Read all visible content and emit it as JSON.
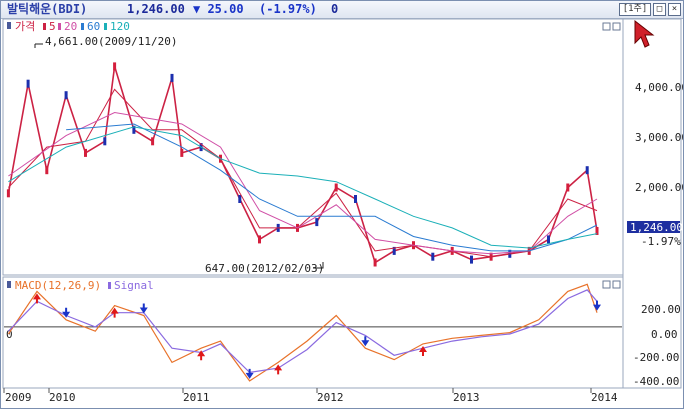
{
  "header": {
    "name": "발틱해운(BDI)",
    "price": "1,246.00",
    "change": "▼ 25.00",
    "change_pct": "(-1.97%)",
    "volume": "0",
    "period_button": "[1주]"
  },
  "price_panel": {
    "legend": [
      {
        "label": "가격",
        "color": "#cc2244"
      },
      {
        "label": "5",
        "color": "#cc2244"
      },
      {
        "label": "20",
        "color": "#d04fa6"
      },
      {
        "label": "60",
        "color": "#2a7bd1"
      },
      {
        "label": "120",
        "color": "#1bb0b8"
      }
    ],
    "high_annotation": "4,661.00(2009/11/20)",
    "low_annotation": "647.00(2012/02/03)",
    "last_price_label": "1,246.00",
    "last_pct_label": "-1.97%",
    "y_ticks": [
      "4,000.00",
      "3,000.00",
      "2,000.00"
    ]
  },
  "macd_panel": {
    "legend": [
      {
        "label": "MACD(12,26,9)",
        "color": "#e8722a"
      },
      {
        "label": "Signal",
        "color": "#8a6ae0"
      }
    ],
    "y_ticks": [
      "200.00",
      "0.00",
      "-200.00",
      "-400.00"
    ],
    "zero_label": "0"
  },
  "x_axis": {
    "labels": [
      "2009",
      "2010",
      "2011",
      "2012",
      "2013",
      "2014"
    ]
  },
  "chart_data": [
    {
      "type": "line",
      "series": [
        {
          "name": "가격",
          "x": [
            "2008-12",
            "2009-02",
            "2009-04",
            "2009-06",
            "2009-08",
            "2009-10",
            "2009-11",
            "2010-01",
            "2010-03",
            "2010-05",
            "2010-06",
            "2010-08",
            "2010-10",
            "2010-12",
            "2011-02",
            "2011-04",
            "2011-06",
            "2011-08",
            "2011-10",
            "2011-12",
            "2012-02",
            "2012-04",
            "2012-06",
            "2012-08",
            "2012-10",
            "2012-12",
            "2013-02",
            "2013-04",
            "2013-06",
            "2013-08",
            "2013-10",
            "2013-12",
            "2014-01"
          ],
          "values": [
            1900,
            3800,
            2300,
            3600,
            2600,
            2800,
            4100,
            3000,
            2800,
            3900,
            2600,
            2700,
            2500,
            1800,
            1100,
            1300,
            1300,
            1400,
            2000,
            1800,
            700,
            900,
            1000,
            800,
            900,
            750,
            800,
            850,
            900,
            1100,
            2000,
            2300,
            1246
          ]
        },
        {
          "name": "5",
          "x": [
            "2008-12",
            "2009-04",
            "2009-08",
            "2009-11",
            "2010-03",
            "2010-06",
            "2010-10",
            "2011-02",
            "2011-06",
            "2011-10",
            "2012-02",
            "2012-06",
            "2012-10",
            "2013-02",
            "2013-06",
            "2013-10",
            "2014-01"
          ],
          "values": [
            2000,
            2700,
            2800,
            3700,
            3000,
            3000,
            2500,
            1300,
            1300,
            1900,
            900,
            1000,
            900,
            800,
            900,
            1800,
            1600
          ]
        },
        {
          "name": "20",
          "x": [
            "2008-12",
            "2009-06",
            "2009-11",
            "2010-06",
            "2010-10",
            "2011-02",
            "2011-06",
            "2011-10",
            "2012-02",
            "2012-06",
            "2012-10",
            "2013-02",
            "2013-06",
            "2013-10",
            "2014-01"
          ],
          "values": [
            2200,
            2900,
            3300,
            3100,
            2700,
            1600,
            1300,
            1700,
            1100,
            1000,
            900,
            850,
            900,
            1500,
            1800
          ]
        },
        {
          "name": "60",
          "x": [
            "2009-06",
            "2010-01",
            "2010-06",
            "2010-10",
            "2011-02",
            "2011-06",
            "2011-10",
            "2012-02",
            "2012-06",
            "2012-10",
            "2013-02",
            "2013-06",
            "2013-10",
            "2014-01"
          ],
          "values": [
            3000,
            3100,
            2700,
            2300,
            1800,
            1500,
            1500,
            1500,
            1150,
            1000,
            900,
            900,
            1100,
            1350
          ]
        },
        {
          "name": "120",
          "x": [
            "2008-12",
            "2009-06",
            "2010-01",
            "2010-06",
            "2010-10",
            "2011-02",
            "2011-06",
            "2011-10",
            "2012-02",
            "2012-06",
            "2012-10",
            "2013-02",
            "2013-06",
            "2013-10",
            "2014-01"
          ],
          "values": [
            2100,
            2700,
            3050,
            2900,
            2500,
            2250,
            2200,
            2100,
            1800,
            1500,
            1300,
            1000,
            950,
            1100,
            1200
          ]
        }
      ],
      "ylim": [
        500,
        4800
      ],
      "annotations": [
        "4,661.00(2009/11/20)",
        "647.00(2012/02/03)"
      ]
    },
    {
      "type": "line",
      "series": [
        {
          "name": "MACD(12,26,9)",
          "x": [
            "2008-12",
            "2009-03",
            "2009-06",
            "2009-09",
            "2009-11",
            "2010-02",
            "2010-05",
            "2010-08",
            "2010-10",
            "2011-01",
            "2011-04",
            "2011-07",
            "2011-10",
            "2012-01",
            "2012-04",
            "2012-07",
            "2012-10",
            "2013-01",
            "2013-04",
            "2013-07",
            "2013-10",
            "2013-12",
            "2014-01"
          ],
          "values": [
            -50,
            250,
            50,
            -30,
            150,
            80,
            -250,
            -150,
            -100,
            -380,
            -250,
            -100,
            80,
            -150,
            -230,
            -120,
            -80,
            -60,
            -40,
            50,
            250,
            300,
            100
          ]
        },
        {
          "name": "Signal",
          "x": [
            "2008-12",
            "2009-03",
            "2009-06",
            "2009-09",
            "2009-11",
            "2010-02",
            "2010-05",
            "2010-08",
            "2010-10",
            "2011-01",
            "2011-04",
            "2011-07",
            "2011-10",
            "2012-01",
            "2012-04",
            "2012-07",
            "2012-10",
            "2013-01",
            "2013-04",
            "2013-07",
            "2013-10",
            "2013-12",
            "2014-01"
          ],
          "values": [
            -30,
            180,
            80,
            0,
            100,
            100,
            -150,
            -180,
            -120,
            -320,
            -290,
            -160,
            30,
            -60,
            -200,
            -150,
            -100,
            -70,
            -50,
            20,
            200,
            260,
            180
          ]
        }
      ],
      "ylim": [
        -430,
        330
      ]
    }
  ]
}
